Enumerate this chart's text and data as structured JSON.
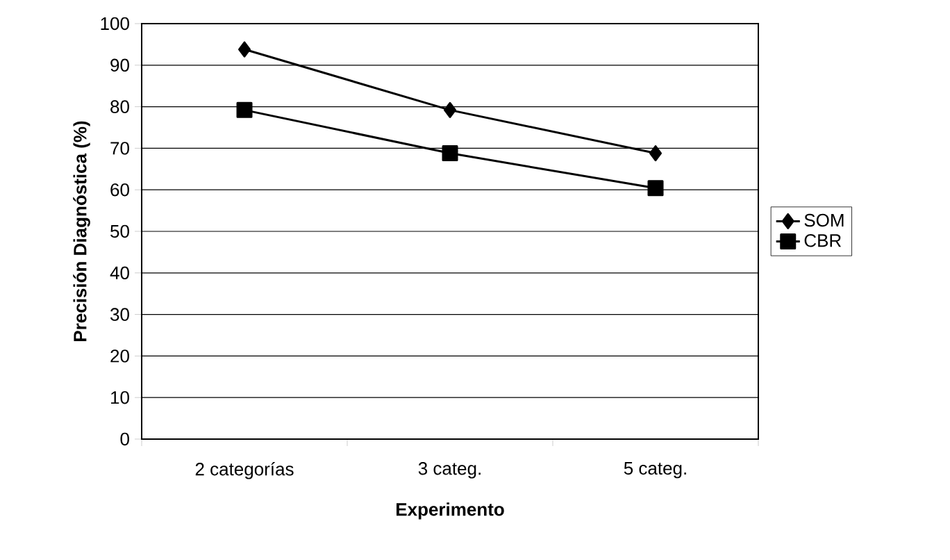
{
  "chart_data": {
    "type": "line",
    "xlabel": "Experimento",
    "ylabel": "Precisión Diagnóstica (%)",
    "categories": [
      "2 categorías",
      "3 categ.",
      "5 categ."
    ],
    "series": [
      {
        "name": "SOM",
        "color": "#000000",
        "marker": "diamond",
        "values": [
          93.8,
          79.2,
          68.8
        ]
      },
      {
        "name": "CBR",
        "color": "#000000",
        "marker": "square",
        "values": [
          79.2,
          68.8,
          60.4
        ]
      }
    ],
    "ylim": [
      0,
      100
    ],
    "yticks": [
      0,
      10,
      20,
      30,
      40,
      50,
      60,
      70,
      80,
      90,
      100
    ],
    "grid": "y",
    "legend": "right",
    "line_style": "solid"
  }
}
